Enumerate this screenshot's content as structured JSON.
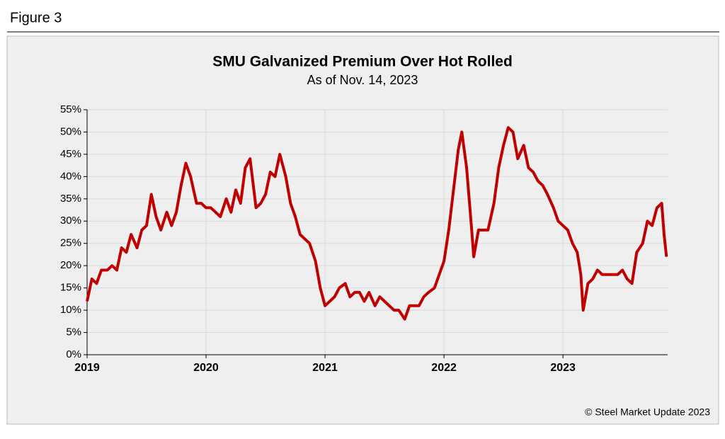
{
  "header": "Figure 3",
  "footer": "© Steel Market Update 2023",
  "chart_data": {
    "type": "line",
    "title": "SMU Galvanized Premium Over Hot Rolled",
    "subtitle": "As of Nov. 14, 2023",
    "xlim": [
      2019,
      2023.88
    ],
    "xticks": [
      2019,
      2020,
      2021,
      2022,
      2023
    ],
    "ylim": [
      0,
      55
    ],
    "yticks": [
      {
        "value": 0,
        "label": "0%"
      },
      {
        "value": 5,
        "label": "5%"
      },
      {
        "value": 10,
        "label": "10%"
      },
      {
        "value": 15,
        "label": "15%"
      },
      {
        "value": 20,
        "label": "20%"
      },
      {
        "value": 25,
        "label": "25%"
      },
      {
        "value": 30,
        "label": "30%"
      },
      {
        "value": 35,
        "label": "35%"
      },
      {
        "value": 40,
        "label": "40%"
      },
      {
        "value": 45,
        "label": "45%"
      },
      {
        "value": 50,
        "label": "50%"
      },
      {
        "value": 55,
        "label": "55%"
      }
    ],
    "grid": true,
    "series": [
      {
        "color": "#c00000",
        "x": [
          2019.0,
          2019.04,
          2019.08,
          2019.12,
          2019.17,
          2019.21,
          2019.25,
          2019.29,
          2019.33,
          2019.37,
          2019.42,
          2019.46,
          2019.5,
          2019.54,
          2019.58,
          2019.62,
          2019.67,
          2019.71,
          2019.75,
          2019.79,
          2019.83,
          2019.87,
          2019.92,
          2019.96,
          2020.0,
          2020.04,
          2020.08,
          2020.12,
          2020.17,
          2020.21,
          2020.25,
          2020.29,
          2020.33,
          2020.37,
          2020.42,
          2020.46,
          2020.5,
          2020.54,
          2020.58,
          2020.62,
          2020.67,
          2020.71,
          2020.75,
          2020.79,
          2020.83,
          2020.87,
          2020.92,
          2020.96,
          2021.0,
          2021.04,
          2021.08,
          2021.12,
          2021.17,
          2021.21,
          2021.25,
          2021.29,
          2021.33,
          2021.37,
          2021.42,
          2021.46,
          2021.5,
          2021.54,
          2021.58,
          2021.62,
          2021.67,
          2021.71,
          2021.75,
          2021.79,
          2021.83,
          2021.87,
          2021.92,
          2021.96,
          2022.0,
          2022.04,
          2022.08,
          2022.12,
          2022.15,
          2022.19,
          2022.23,
          2022.25,
          2022.29,
          2022.33,
          2022.37,
          2022.42,
          2022.46,
          2022.5,
          2022.54,
          2022.58,
          2022.62,
          2022.67,
          2022.71,
          2022.75,
          2022.79,
          2022.83,
          2022.87,
          2022.92,
          2022.96,
          2023.0,
          2023.04,
          2023.08,
          2023.12,
          2023.15,
          2023.17,
          2023.21,
          2023.25,
          2023.29,
          2023.33,
          2023.37,
          2023.42,
          2023.46,
          2023.5,
          2023.54,
          2023.58,
          2023.62,
          2023.67,
          2023.71,
          2023.75,
          2023.79,
          2023.83,
          2023.85,
          2023.87
        ],
        "values": [
          12,
          17,
          16,
          19,
          19,
          20,
          19,
          24,
          23,
          27,
          24,
          28,
          29,
          36,
          31,
          28,
          32,
          29,
          32,
          38,
          43,
          40,
          34,
          34,
          33,
          33,
          32,
          31,
          35,
          32,
          37,
          34,
          42,
          44,
          33,
          34,
          36,
          41,
          40,
          45,
          40,
          34,
          31,
          27,
          26,
          25,
          21,
          15,
          11,
          12,
          13,
          15,
          16,
          13,
          14,
          14,
          12,
          14,
          11,
          13,
          12,
          11,
          10,
          10,
          8,
          11,
          11,
          11,
          13,
          14,
          15,
          18,
          21,
          28,
          37,
          46,
          50,
          42,
          29,
          22,
          28,
          28,
          28,
          34,
          42,
          47,
          51,
          50,
          44,
          47,
          42,
          41,
          39,
          38,
          36,
          33,
          30,
          29,
          28,
          25,
          23,
          18,
          10,
          16,
          17,
          19,
          18,
          18,
          18,
          18,
          19,
          17,
          16,
          23,
          25,
          30,
          29,
          33,
          34,
          27,
          22
        ]
      }
    ]
  }
}
